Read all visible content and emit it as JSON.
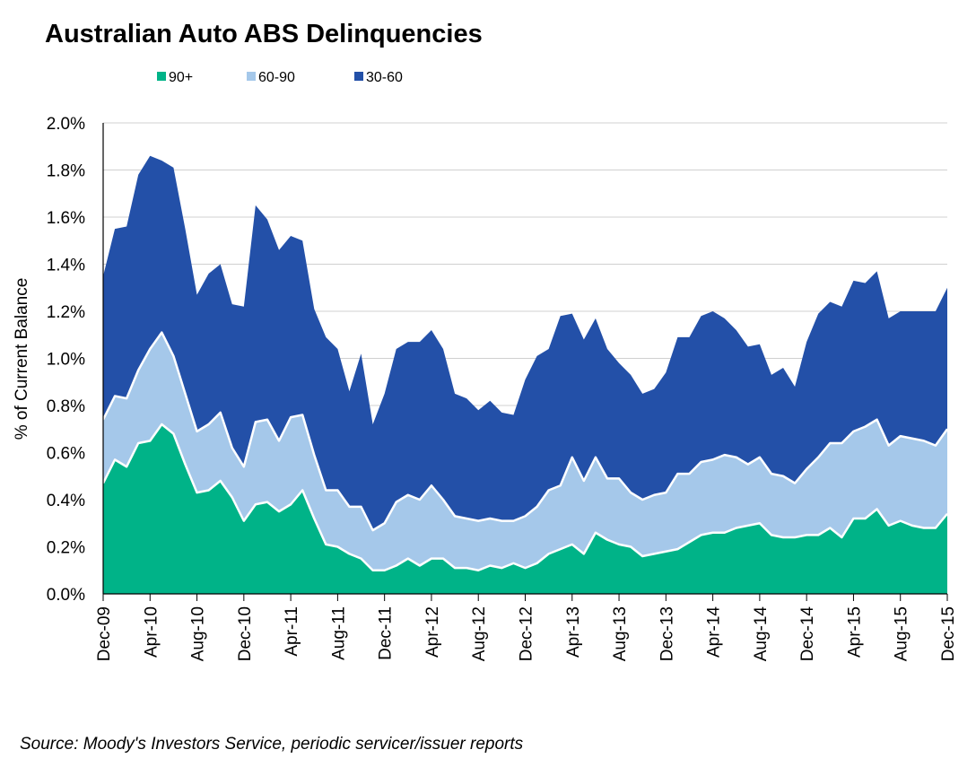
{
  "chart_data": {
    "type": "area",
    "stacked": true,
    "title": "Australian Auto ABS Delinquencies",
    "ylabel": "% of Current Balance",
    "xlabel": "",
    "source": "Source: Moody's Investors Service, periodic servicer/issuer reports",
    "ylim": [
      0,
      2.0
    ],
    "y_ticks": [
      "0.0%",
      "0.2%",
      "0.4%",
      "0.6%",
      "0.8%",
      "1.0%",
      "1.2%",
      "1.4%",
      "1.6%",
      "1.8%",
      "2.0%"
    ],
    "x_tick_labels": [
      "Dec-09",
      "Apr-10",
      "Aug-10",
      "Dec-10",
      "Apr-11",
      "Aug-11",
      "Dec-11",
      "Apr-12",
      "Aug-12",
      "Dec-12",
      "Apr-13",
      "Aug-13",
      "Dec-13",
      "Apr-14",
      "Aug-14",
      "Dec-14",
      "Apr-15",
      "Aug-15",
      "Dec-15"
    ],
    "x_start": "Dec-09",
    "x_end": "Dec-15",
    "grid": "horizontal",
    "legend_position": "top",
    "series": [
      {
        "name": "90+",
        "color": "#00b388",
        "values": [
          0.47,
          0.57,
          0.54,
          0.64,
          0.65,
          0.72,
          0.68,
          0.55,
          0.43,
          0.44,
          0.48,
          0.41,
          0.31,
          0.38,
          0.39,
          0.35,
          0.38,
          0.44,
          0.32,
          0.21,
          0.2,
          0.17,
          0.15,
          0.1,
          0.1,
          0.12,
          0.15,
          0.12,
          0.15,
          0.15,
          0.11,
          0.11,
          0.1,
          0.12,
          0.11,
          0.13,
          0.11,
          0.13,
          0.17,
          0.19,
          0.21,
          0.17,
          0.26,
          0.23,
          0.21,
          0.2,
          0.16,
          0.17,
          0.18,
          0.19,
          0.22,
          0.25,
          0.26,
          0.26,
          0.28,
          0.29,
          0.3,
          0.25,
          0.24,
          0.24,
          0.25,
          0.25,
          0.28,
          0.24,
          0.32,
          0.32,
          0.36,
          0.29,
          0.31,
          0.29,
          0.28,
          0.28,
          0.34
        ]
      },
      {
        "name": "60-90",
        "color": "#a5c8ea",
        "values": [
          0.27,
          0.27,
          0.29,
          0.31,
          0.39,
          0.39,
          0.33,
          0.3,
          0.26,
          0.28,
          0.29,
          0.21,
          0.23,
          0.35,
          0.35,
          0.3,
          0.37,
          0.32,
          0.27,
          0.23,
          0.24,
          0.2,
          0.22,
          0.17,
          0.2,
          0.27,
          0.27,
          0.28,
          0.31,
          0.25,
          0.22,
          0.21,
          0.21,
          0.2,
          0.2,
          0.18,
          0.22,
          0.24,
          0.27,
          0.27,
          0.37,
          0.31,
          0.32,
          0.26,
          0.28,
          0.23,
          0.24,
          0.25,
          0.25,
          0.32,
          0.29,
          0.31,
          0.31,
          0.33,
          0.3,
          0.26,
          0.28,
          0.26,
          0.26,
          0.23,
          0.28,
          0.33,
          0.36,
          0.4,
          0.37,
          0.39,
          0.38,
          0.34,
          0.36,
          0.37,
          0.37,
          0.35,
          0.36
        ]
      },
      {
        "name": "30-60",
        "color": "#2350a8",
        "values": [
          0.61,
          0.71,
          0.73,
          0.83,
          0.82,
          0.73,
          0.8,
          0.7,
          0.58,
          0.64,
          0.63,
          0.61,
          0.68,
          0.92,
          0.85,
          0.81,
          0.77,
          0.74,
          0.62,
          0.65,
          0.6,
          0.49,
          0.65,
          0.45,
          0.55,
          0.65,
          0.65,
          0.67,
          0.66,
          0.64,
          0.52,
          0.51,
          0.47,
          0.5,
          0.46,
          0.45,
          0.58,
          0.64,
          0.6,
          0.72,
          0.61,
          0.6,
          0.59,
          0.55,
          0.49,
          0.5,
          0.45,
          0.45,
          0.51,
          0.58,
          0.58,
          0.62,
          0.63,
          0.58,
          0.54,
          0.5,
          0.48,
          0.42,
          0.46,
          0.41,
          0.54,
          0.61,
          0.6,
          0.58,
          0.64,
          0.61,
          0.63,
          0.54,
          0.53,
          0.54,
          0.55,
          0.57,
          0.6
        ]
      }
    ]
  }
}
